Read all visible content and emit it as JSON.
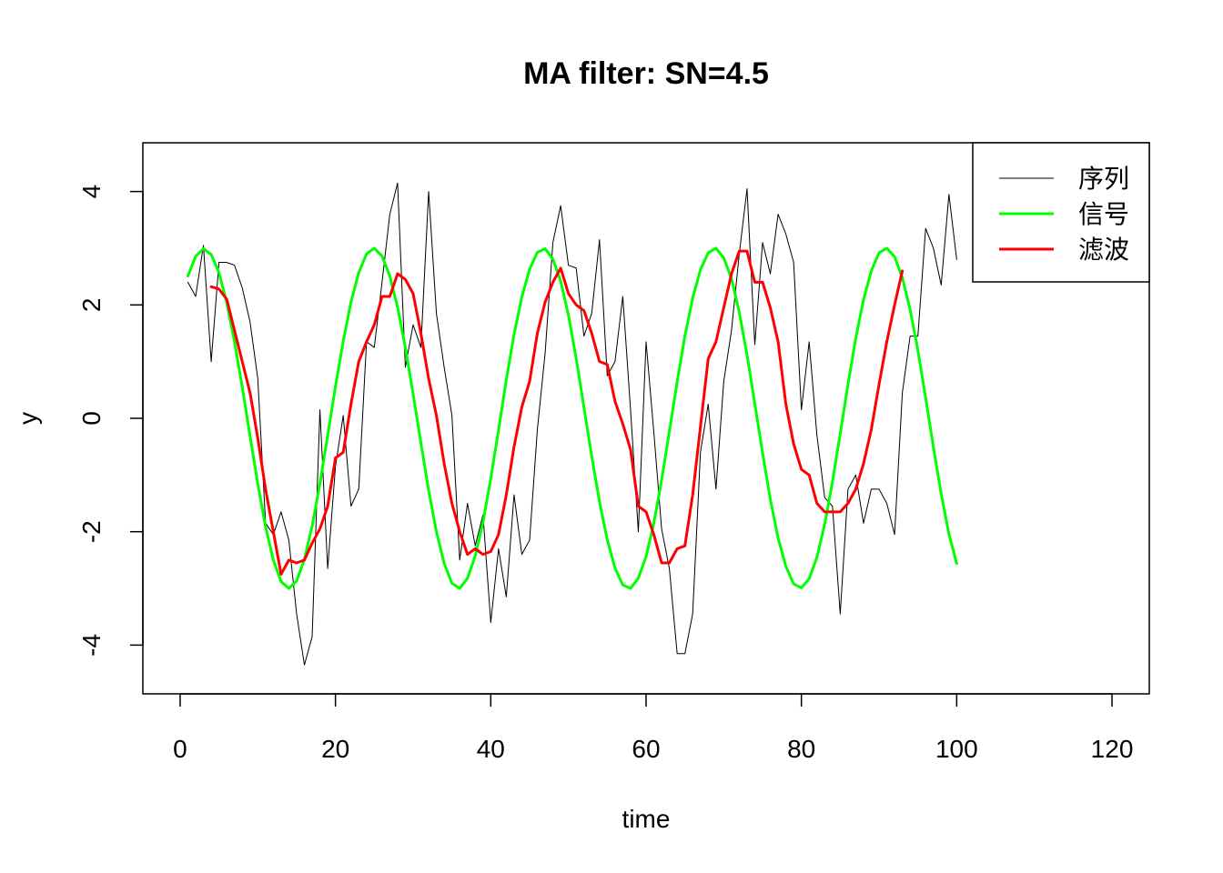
{
  "chart_data": {
    "type": "line",
    "title": "MA filter: SN=4.5",
    "xlabel": "time",
    "ylabel": "y",
    "xlim": [
      -4.8,
      124.8
    ],
    "ylim": [
      -4.86,
      4.86
    ],
    "x_ticks": [
      0,
      20,
      40,
      60,
      80,
      100,
      120
    ],
    "y_ticks": [
      -4,
      -2,
      0,
      2,
      4
    ],
    "legend_position": "top-right",
    "grid": false,
    "series": [
      {
        "name": "序列",
        "color": "#000000",
        "width": 1,
        "x_start": 1,
        "values": [
          2.4,
          2.15,
          3.05,
          1.0,
          2.75,
          2.75,
          2.7,
          2.3,
          1.7,
          0.7,
          -1.85,
          -2.05,
          -1.65,
          -2.15,
          -3.45,
          -4.35,
          -3.85,
          0.15,
          -2.65,
          -0.85,
          0.05,
          -1.55,
          -1.25,
          1.35,
          1.25,
          2.4,
          3.6,
          4.15,
          0.9,
          1.65,
          1.25,
          4.0,
          1.85,
          0.9,
          0.05,
          -2.5,
          -1.5,
          -2.25,
          -1.7,
          -3.6,
          -2.3,
          -3.15,
          -1.35,
          -2.4,
          -2.15,
          -0.2,
          1.15,
          3.1,
          3.75,
          2.7,
          2.65,
          1.45,
          1.85,
          3.15,
          0.75,
          1.0,
          2.15,
          0.15,
          -2.0,
          1.35,
          -0.25,
          -1.95,
          -2.65,
          -4.15,
          -4.15,
          -3.45,
          -0.6,
          0.25,
          -1.25,
          0.65,
          1.55,
          2.9,
          4.05,
          1.3,
          3.1,
          2.55,
          3.6,
          3.25,
          2.75,
          0.15,
          1.35,
          -0.3,
          -1.4,
          -1.55,
          -3.45,
          -1.25,
          -1.0,
          -1.85,
          -1.25,
          -1.25,
          -1.5,
          -2.05,
          0.45,
          1.45,
          1.45,
          3.35,
          3.0,
          2.35,
          3.95,
          2.8
        ]
      },
      {
        "name": "信号",
        "color": "#00ff00",
        "width": 3,
        "x_start": 1,
        "values": [
          2.51,
          2.86,
          2.99,
          2.89,
          2.57,
          2.04,
          1.35,
          0.55,
          -0.31,
          -1.16,
          -1.91,
          -2.5,
          -2.88,
          -3.0,
          -2.87,
          -2.49,
          -1.9,
          -1.15,
          -0.3,
          0.56,
          1.36,
          2.05,
          2.57,
          2.9,
          3.0,
          2.86,
          2.51,
          1.96,
          1.25,
          0.43,
          -0.43,
          -1.27,
          -2.0,
          -2.56,
          -2.91,
          -3.0,
          -2.82,
          -2.43,
          -1.83,
          -1.06,
          -0.21,
          0.68,
          1.48,
          2.14,
          2.63,
          2.93,
          2.99,
          2.81,
          2.42,
          1.82,
          1.06,
          0.19,
          -0.67,
          -1.47,
          -2.14,
          -2.64,
          -2.94,
          -3.0,
          -2.82,
          -2.44,
          -1.85,
          -1.09,
          -0.23,
          0.64,
          1.45,
          2.12,
          2.62,
          2.92,
          3.0,
          2.83,
          2.46,
          1.87,
          1.12,
          0.26,
          -0.61,
          -1.43,
          -2.11,
          -2.61,
          -2.92,
          -2.99,
          -2.83,
          -2.45,
          -1.87,
          -1.12,
          -0.27,
          0.6,
          1.41,
          2.09,
          2.6,
          2.92,
          3.0,
          2.85,
          2.48,
          1.92,
          1.2,
          0.36,
          -0.51,
          -1.33,
          -2.04,
          -2.56
        ]
      },
      {
        "name": "滤波",
        "color": "#ff0000",
        "width": 3,
        "x_start": 4,
        "values": [
          2.32,
          2.28,
          2.1,
          1.55,
          1.0,
          0.45,
          -0.35,
          -1.25,
          -2.0,
          -2.75,
          -2.5,
          -2.55,
          -2.5,
          -2.2,
          -1.95,
          -1.55,
          -0.7,
          -0.6,
          0.25,
          1.0,
          1.35,
          1.65,
          2.15,
          2.15,
          2.55,
          2.45,
          2.2,
          1.5,
          0.7,
          0.05,
          -0.8,
          -1.5,
          -2.0,
          -2.4,
          -2.3,
          -2.4,
          -2.35,
          -2.05,
          -1.35,
          -0.5,
          0.2,
          0.65,
          1.5,
          2.05,
          2.4,
          2.65,
          2.2,
          2.0,
          1.9,
          1.5,
          1.0,
          0.95,
          0.3,
          -0.1,
          -0.55,
          -1.55,
          -1.65,
          -2.05,
          -2.55,
          -2.55,
          -2.3,
          -2.25,
          -1.35,
          -0.15,
          1.05,
          1.35,
          1.95,
          2.55,
          2.95,
          2.95,
          2.4,
          2.4,
          1.95,
          1.35,
          0.25,
          -0.45,
          -0.9,
          -1.0,
          -1.5,
          -1.65,
          -1.65,
          -1.65,
          -1.5,
          -1.25,
          -0.8,
          -0.2,
          0.6,
          1.35,
          2.0,
          2.6
        ]
      }
    ]
  }
}
